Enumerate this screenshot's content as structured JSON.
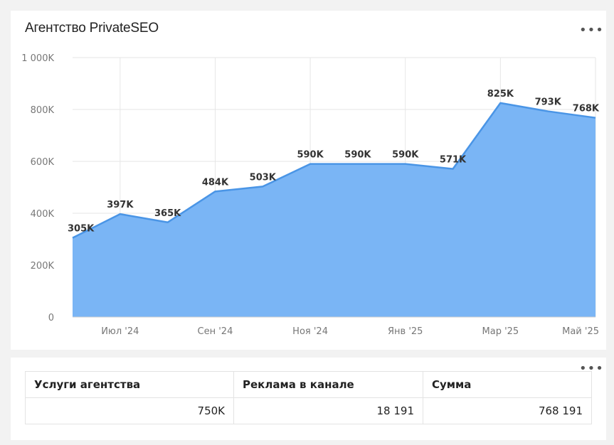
{
  "chart_card": {
    "title": "Агентство PrivateSEO",
    "menu_icon": "more-dots-icon"
  },
  "chart_data": {
    "type": "area",
    "title": "Агентство PrivateSEO",
    "x": [
      "2024-06",
      "2024-07",
      "2024-08",
      "2024-09",
      "2024-10",
      "2024-11",
      "2024-12",
      "2025-01",
      "2025-02",
      "2025-03",
      "2025-04",
      "2025-05"
    ],
    "values": [
      305000,
      397000,
      365000,
      484000,
      503000,
      590000,
      590000,
      590000,
      571000,
      825000,
      793000,
      768000
    ],
    "data_labels": [
      "305K",
      "397K",
      "365K",
      "484K",
      "503K",
      "590K",
      "590K",
      "590K",
      "571K",
      "825K",
      "793K",
      "768K"
    ],
    "x_ticks": [
      {
        "index": 1,
        "label": "Июл '24"
      },
      {
        "index": 3,
        "label": "Сен '24"
      },
      {
        "index": 5,
        "label": "Ноя '24"
      },
      {
        "index": 7,
        "label": "Янв '25"
      },
      {
        "index": 9,
        "label": "Мар '25"
      },
      {
        "index": 11,
        "label": "Май '25"
      }
    ],
    "y_ticks": [
      {
        "value": 0,
        "label": "0"
      },
      {
        "value": 200000,
        "label": "200K"
      },
      {
        "value": 400000,
        "label": "400K"
      },
      {
        "value": 600000,
        "label": "600K"
      },
      {
        "value": 800000,
        "label": "800K"
      },
      {
        "value": 1000000,
        "label": "1 000K"
      }
    ],
    "ylim": [
      0,
      1000000
    ],
    "grid": true,
    "fill_color": "#7ab5f5",
    "line_color": "#4a95e6"
  },
  "table_card": {
    "menu_icon": "more-dots-icon",
    "headers": [
      "Услуги агентства",
      "Реклама в канале",
      "Сумма"
    ],
    "row": [
      "750K",
      "18 191",
      "768 191"
    ]
  }
}
